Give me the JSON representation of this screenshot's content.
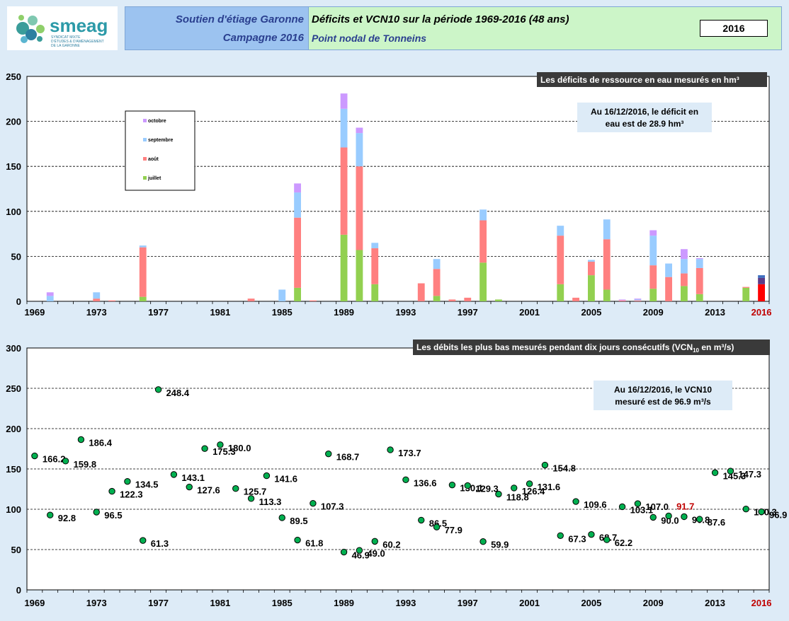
{
  "header": {
    "logo_text": "smeag",
    "logo_sub1": "SYNDICAT MIXTE",
    "logo_sub2": "D'ÉTUDES & D'AMÉNAGEMENT",
    "logo_sub3": "DE LA GARONNE",
    "left_line1": "Soutien d'étiage Garonne",
    "left_line2": "Campagne 2016",
    "right_line1": "Déficits et VCN10 sur la période 1969-2016 (48 ans)",
    "right_line2": "Point nodal de Tonneins",
    "year_box": "2016"
  },
  "colors": {
    "juillet": "#92d050",
    "aout": "#ff8080",
    "septembre": "#99ccff",
    "octobre": "#cc99ff",
    "juillet_2016": "#ff0000",
    "aout_2016": "#5b3c88",
    "septembre_2016": "#3f6fbf",
    "point": "#00b050",
    "highlight_label": "#c00000"
  },
  "chart_data": [
    {
      "type": "bar",
      "stacked": true,
      "title": "Les déficits de ressource  en eau mesurés en hm³",
      "annotation": "Au 16/12/2016, le déficit en eau est de 28.9 hm³",
      "ylim": [
        0,
        250
      ],
      "yticks": [
        "0",
        "50",
        "100",
        "150",
        "200",
        "250"
      ],
      "xticks": [
        "1969",
        "1973",
        "1977",
        "1981",
        "1985",
        "1989",
        "1993",
        "1997",
        "2001",
        "2005",
        "2009",
        "2013",
        "2016"
      ],
      "grid": true,
      "legend_position": "top-left",
      "legend": [
        "octobre",
        "septembre",
        "août",
        "juillet"
      ],
      "years": [
        1969,
        1970,
        1971,
        1972,
        1973,
        1974,
        1975,
        1976,
        1977,
        1978,
        1979,
        1980,
        1981,
        1982,
        1983,
        1984,
        1985,
        1986,
        1987,
        1988,
        1989,
        1990,
        1991,
        1992,
        1993,
        1994,
        1995,
        1996,
        1997,
        1998,
        1999,
        2000,
        2001,
        2002,
        2003,
        2004,
        2005,
        2006,
        2007,
        2008,
        2009,
        2010,
        2011,
        2012,
        2013,
        2014,
        2015,
        2016
      ],
      "series": [
        {
          "name": "juillet",
          "values": [
            0,
            0,
            0,
            0,
            0,
            0,
            0,
            5,
            0,
            0,
            0,
            0,
            0,
            0,
            0,
            0,
            0,
            15,
            0,
            0,
            74,
            57,
            19,
            0,
            0,
            0,
            6,
            0,
            0,
            43,
            2,
            0,
            0,
            0,
            19,
            0,
            29,
            13,
            0,
            0,
            14,
            0,
            17,
            8,
            0,
            0,
            15,
            19
          ]
        },
        {
          "name": "août",
          "values": [
            0,
            0,
            0,
            0,
            3,
            1,
            0,
            55,
            0,
            0,
            0,
            0,
            0,
            0,
            3,
            0,
            0,
            78,
            1,
            0,
            97,
            93,
            40,
            0,
            0,
            20,
            30,
            2,
            4,
            47,
            0,
            0,
            0,
            0,
            54,
            4,
            15,
            56,
            1,
            1,
            26,
            27,
            14,
            29,
            0,
            0,
            1,
            7
          ]
        },
        {
          "name": "septembre",
          "values": [
            0,
            6,
            0,
            0,
            7,
            0,
            0,
            2,
            0,
            0,
            0,
            0,
            0,
            0,
            0,
            0,
            13,
            28,
            0,
            0,
            43,
            37,
            6,
            0,
            0,
            0,
            11,
            0,
            0,
            12,
            0,
            0,
            0,
            0,
            11,
            0,
            2,
            22,
            0,
            1,
            33,
            15,
            16,
            10,
            0,
            0,
            0,
            3
          ]
        },
        {
          "name": "octobre",
          "values": [
            0,
            4,
            0,
            0,
            0,
            0,
            0,
            0,
            0,
            0,
            0,
            0,
            0,
            0,
            0,
            0,
            0,
            10,
            0,
            0,
            17,
            6,
            0,
            0,
            0,
            0,
            0,
            0,
            0,
            0,
            0,
            0,
            0,
            0,
            0,
            0,
            0,
            0,
            1,
            1,
            6,
            0,
            11,
            1,
            0,
            0,
            0,
            0
          ]
        }
      ]
    },
    {
      "type": "scatter",
      "title": "Les débits les plus bas mesurés pendant dix jours consécutifs  (VCN",
      "title_sub": "10",
      "title_end": " en m³/s)",
      "annotation": "Au 16/12/2016, le VCN10 mesuré est de 96.9 m³/s",
      "ylim": [
        0,
        300
      ],
      "yticks": [
        "0",
        "50",
        "100",
        "150",
        "200",
        "250",
        "300"
      ],
      "xticks": [
        "1969",
        "1973",
        "1977",
        "1981",
        "1985",
        "1989",
        "1993",
        "1997",
        "2001",
        "2005",
        "2009",
        "2013",
        "2016"
      ],
      "grid": true,
      "points": [
        {
          "x": 1969,
          "y": 166.2,
          "label": "166.2"
        },
        {
          "x": 1970,
          "y": 92.8,
          "label": "92.8"
        },
        {
          "x": 1971,
          "y": 159.8,
          "label": "159.8"
        },
        {
          "x": 1972,
          "y": 186.4,
          "label": "186.4"
        },
        {
          "x": 1973,
          "y": 96.5,
          "label": "96.5"
        },
        {
          "x": 1974,
          "y": 122.3,
          "label": "122.3"
        },
        {
          "x": 1975,
          "y": 134.5,
          "label": "134.5"
        },
        {
          "x": 1976,
          "y": 61.3,
          "label": "61.3"
        },
        {
          "x": 1977,
          "y": 248.4,
          "label": "248.4"
        },
        {
          "x": 1978,
          "y": 143.1,
          "label": "143.1"
        },
        {
          "x": 1979,
          "y": 127.6,
          "label": "127.6"
        },
        {
          "x": 1980,
          "y": 175.3,
          "label": "175.3"
        },
        {
          "x": 1981,
          "y": 180.0,
          "label": "180.0"
        },
        {
          "x": 1982,
          "y": 125.7,
          "label": "125.7"
        },
        {
          "x": 1983,
          "y": 113.3,
          "label": "113.3"
        },
        {
          "x": 1984,
          "y": 141.6,
          "label": "141.6"
        },
        {
          "x": 1985,
          "y": 89.5,
          "label": "89.5"
        },
        {
          "x": 1986,
          "y": 61.8,
          "label": "61.8"
        },
        {
          "x": 1987,
          "y": 107.3,
          "label": "107.3"
        },
        {
          "x": 1988,
          "y": 168.7,
          "label": "168.7"
        },
        {
          "x": 1989,
          "y": 46.9,
          "label": "46.9"
        },
        {
          "x": 1990,
          "y": 49.0,
          "label": "49.0"
        },
        {
          "x": 1991,
          "y": 60.2,
          "label": "60.2"
        },
        {
          "x": 1992,
          "y": 173.7,
          "label": "173.7"
        },
        {
          "x": 1993,
          "y": 136.6,
          "label": "136.6"
        },
        {
          "x": 1994,
          "y": 86.5,
          "label": "86.5"
        },
        {
          "x": 1995,
          "y": 77.9,
          "label": "77.9"
        },
        {
          "x": 1996,
          "y": 130.1,
          "label": "130.1"
        },
        {
          "x": 1997,
          "y": 129.3,
          "label": "129.3"
        },
        {
          "x": 1998,
          "y": 59.9,
          "label": "59.9"
        },
        {
          "x": 1999,
          "y": 118.8,
          "label": "118.8"
        },
        {
          "x": 2000,
          "y": 126.4,
          "label": "126.4"
        },
        {
          "x": 2001,
          "y": 131.6,
          "label": "131.6"
        },
        {
          "x": 2002,
          "y": 154.8,
          "label": "154.8"
        },
        {
          "x": 2003,
          "y": 67.3,
          "label": "67.3"
        },
        {
          "x": 2004,
          "y": 109.6,
          "label": "109.6"
        },
        {
          "x": 2005,
          "y": 68.7,
          "label": "68.7"
        },
        {
          "x": 2006,
          "y": 62.2,
          "label": "62.2"
        },
        {
          "x": 2007,
          "y": 103.1,
          "label": "103.1"
        },
        {
          "x": 2008,
          "y": 107.0,
          "label": "107.0"
        },
        {
          "x": 2009,
          "y": 90.0,
          "label": "90.0"
        },
        {
          "x": 2010,
          "y": 91.7,
          "label": "91.7"
        },
        {
          "x": 2011,
          "y": 90.8,
          "label": "90.8"
        },
        {
          "x": 2012,
          "y": 87.6,
          "label": "87.6"
        },
        {
          "x": 2013,
          "y": 145.3,
          "label": "145.3"
        },
        {
          "x": 2014,
          "y": 147.3,
          "label": "147.3"
        },
        {
          "x": 2015,
          "y": 100.3,
          "label": "100.3"
        },
        {
          "x": 2016,
          "y": 96.9,
          "label": "96.9"
        }
      ]
    }
  ]
}
